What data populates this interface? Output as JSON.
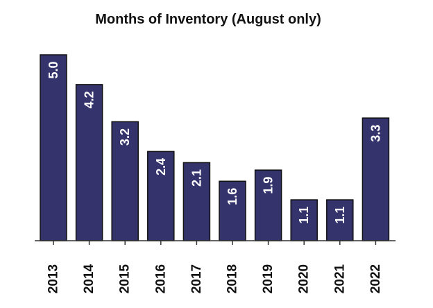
{
  "chart_data": {
    "type": "bar",
    "title": "Months of Inventory (August only)",
    "categories": [
      "2013",
      "2014",
      "2015",
      "2016",
      "2017",
      "2018",
      "2019",
      "2020",
      "2021",
      "2022"
    ],
    "values": [
      5.0,
      4.2,
      3.2,
      2.4,
      2.1,
      1.6,
      1.9,
      1.1,
      1.1,
      3.3
    ],
    "data_labels": [
      "5.0",
      "4.2",
      "3.2",
      "2.4",
      "2.1",
      "1.6",
      "1.9",
      "1.1",
      "1.1",
      "3.3"
    ],
    "xlabel": "",
    "ylabel": "",
    "ylim": [
      0,
      5.0
    ],
    "grid": false,
    "legend": "none",
    "colors": {
      "bar": "#34336b",
      "bar_outline": "#111111",
      "label_inside": "#ffffff",
      "label_outside": "#111111",
      "axis": "#333333"
    }
  }
}
